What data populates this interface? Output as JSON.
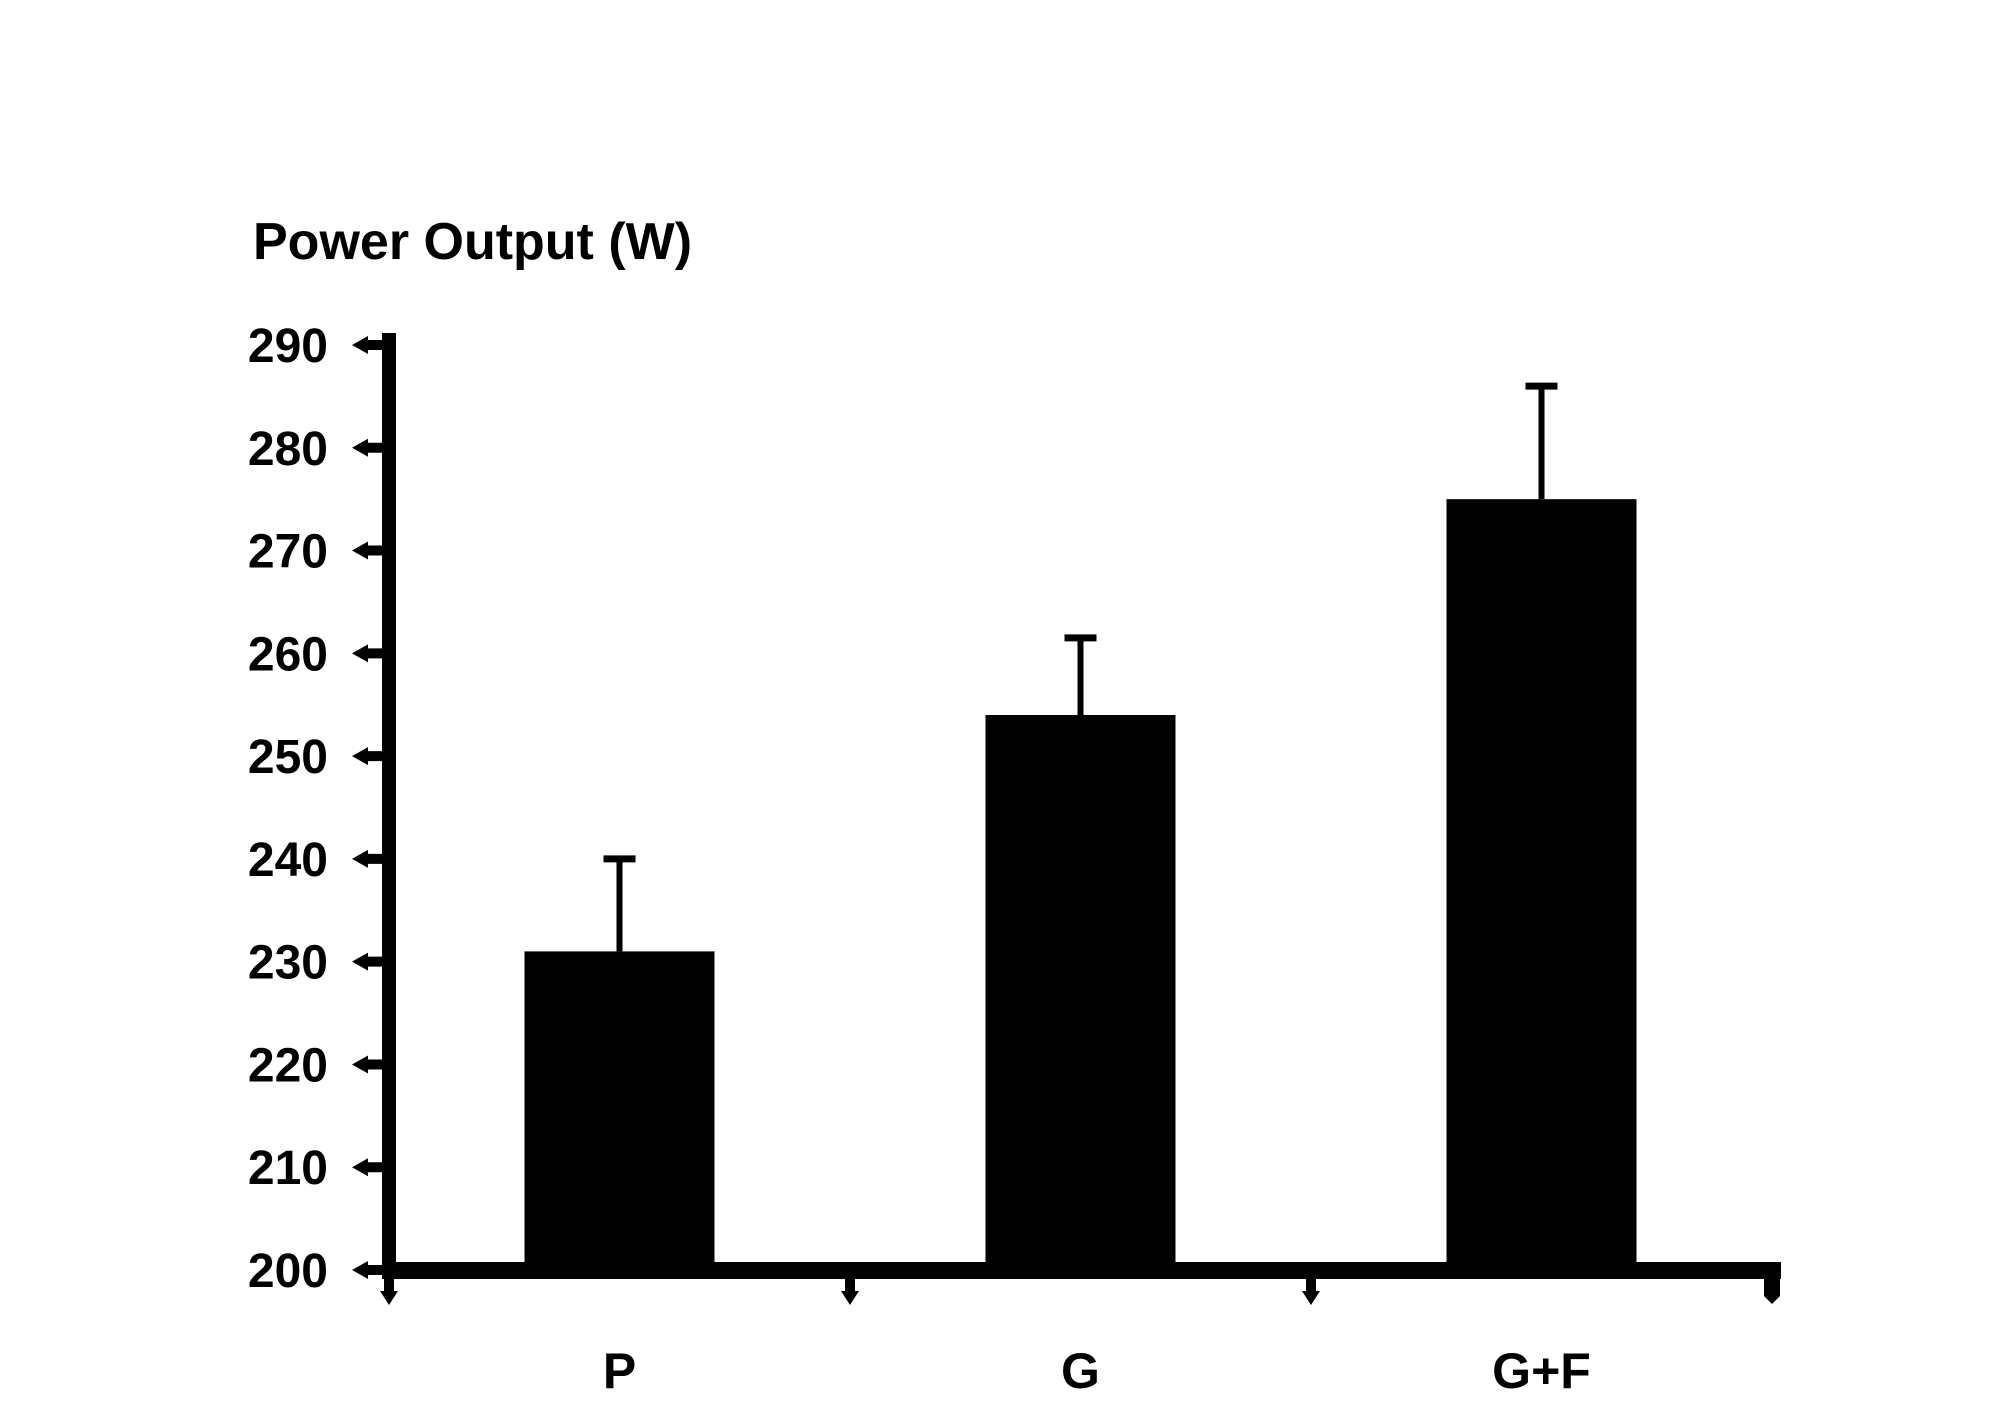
{
  "page": {
    "background": "#ffffff",
    "foreground": "#000000"
  },
  "chart_data": {
    "type": "bar",
    "title": "Power Output (W)",
    "xlabel": "",
    "ylabel": "Power Output (W)",
    "categories": [
      "P",
      "G",
      "G+F"
    ],
    "values": [
      231,
      254,
      275
    ],
    "errors_plus": [
      9,
      7.5,
      11
    ],
    "error_bars": "upper-only",
    "ylim": [
      200,
      290
    ],
    "yticks": [
      200,
      210,
      220,
      230,
      240,
      250,
      260,
      270,
      280,
      290
    ],
    "ytick_step": 10,
    "bar_color": "#000000",
    "axis_color": "#000000",
    "background": "#ffffff",
    "grid": false,
    "legend": "none",
    "tick_style": "outward-arrows"
  }
}
